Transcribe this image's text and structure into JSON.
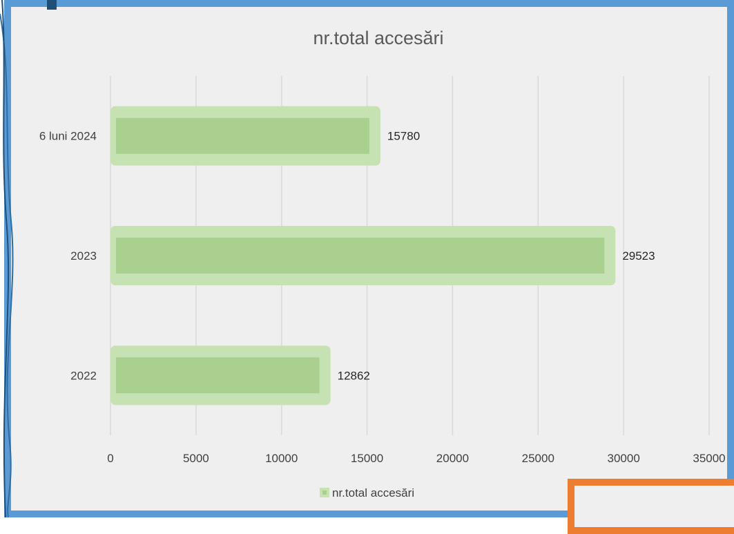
{
  "chart_data": {
    "type": "bar",
    "orientation": "horizontal",
    "title": "nr.total accesări",
    "categories": [
      "2022",
      "2023",
      "6 luni 2024"
    ],
    "series": [
      {
        "name": "nr.total accesări",
        "values": [
          12862,
          29523,
          15780
        ]
      }
    ],
    "xlim": [
      0,
      35000
    ],
    "xticks": [
      0,
      5000,
      10000,
      15000,
      20000,
      25000,
      30000,
      35000
    ],
    "grid": "vertical",
    "legend_position": "bottom",
    "data_labels": true,
    "colors": {
      "bar_fill": "#a9d08e",
      "bar_glow": "#c7e2b2",
      "frame": "#5b9bd5",
      "accent": "#ed7d31",
      "plot_background": "#efefef"
    }
  }
}
